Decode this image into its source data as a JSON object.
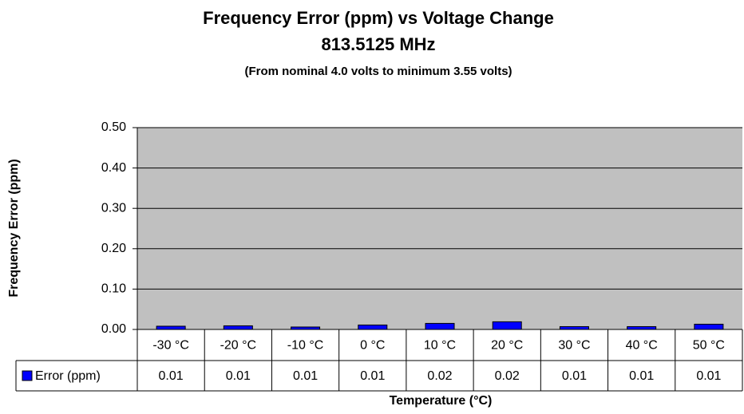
{
  "chart_data": {
    "type": "bar",
    "title": "Frequency Error (ppm) vs Voltage Change",
    "subtitle": "813.5125 MHz",
    "annotation": "(From nominal 4.0 volts to minimum 3.55 volts)",
    "x_label": "Temperature (°C)",
    "y_label": "Frequency Error (ppm)",
    "categories": [
      "-30 °C",
      "-20 °C",
      "-10 °C",
      "0 °C",
      "10 °C",
      "20 °C",
      "30 °C",
      "40 °C",
      "50 °C"
    ],
    "series": [
      {
        "name": "Error (ppm)",
        "color": "#0000ff",
        "values": [
          0.008,
          0.009,
          0.006,
          0.011,
          0.015,
          0.019,
          0.007,
          0.007,
          0.013
        ],
        "value_labels": [
          "0.01",
          "0.01",
          "0.01",
          "0.01",
          "0.02",
          "0.02",
          "0.01",
          "0.01",
          "0.01"
        ]
      }
    ],
    "ylim": [
      0,
      0.5
    ],
    "yticks": [
      {
        "value": 0,
        "label": "0.00"
      },
      {
        "value": 0.1,
        "label": "0.10"
      },
      {
        "value": 0.2,
        "label": "0.20"
      },
      {
        "value": 0.3,
        "label": "0.30"
      },
      {
        "value": 0.4,
        "label": "0.40"
      },
      {
        "value": 0.5,
        "label": "0.50"
      }
    ],
    "grid": true
  }
}
